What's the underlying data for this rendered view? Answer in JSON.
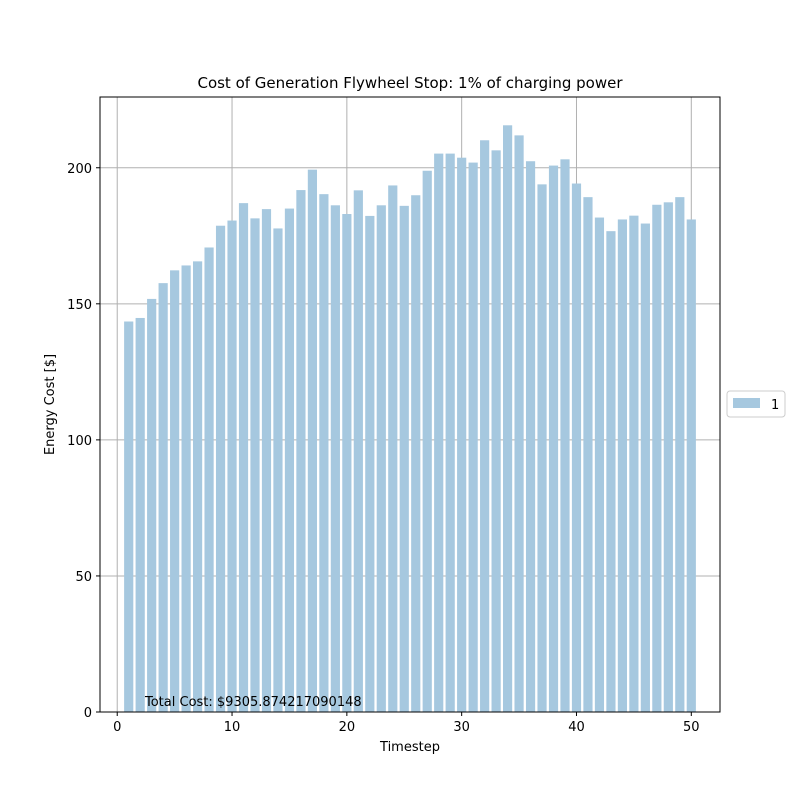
{
  "chart_data": {
    "type": "bar",
    "title": "Cost of Generation Flywheel Stop: 1% of charging power",
    "xlabel": "Timestep",
    "ylabel": "Energy Cost [$]",
    "xlim": [
      -1.5,
      52.5
    ],
    "ylim": [
      0,
      226
    ],
    "xticks": [
      0,
      10,
      20,
      30,
      40,
      50
    ],
    "yticks": [
      0,
      50,
      100,
      150,
      200
    ],
    "grid": true,
    "legend_position": "right",
    "series": [
      {
        "name": "1",
        "color": "#a6c8df",
        "x": [
          1,
          2,
          3,
          4,
          5,
          6,
          7,
          8,
          9,
          10,
          11,
          12,
          13,
          14,
          15,
          16,
          17,
          18,
          19,
          20,
          21,
          22,
          23,
          24,
          25,
          26,
          27,
          28,
          29,
          30,
          31,
          32,
          33,
          34,
          35,
          36,
          37,
          38,
          39,
          40,
          41,
          42,
          43,
          44,
          45,
          46,
          47,
          48,
          49,
          50
        ],
        "values": [
          143.5,
          144.8,
          151.8,
          157.6,
          162.3,
          164.1,
          165.6,
          170.7,
          178.7,
          180.6,
          187.0,
          181.4,
          184.8,
          177.7,
          185.0,
          191.8,
          199.3,
          190.3,
          186.2,
          183.0,
          191.7,
          182.3,
          186.2,
          193.5,
          186.0,
          189.9,
          198.9,
          205.2,
          205.2,
          203.7,
          201.9,
          210.1,
          206.4,
          215.6,
          211.9,
          202.4,
          193.9,
          200.8,
          203.1,
          194.2,
          189.2,
          181.7,
          176.7,
          181.0,
          182.4,
          179.5,
          186.4,
          187.3,
          189.2,
          181.0
        ]
      }
    ],
    "annotation": "Total Cost: $9305.874217090148"
  }
}
